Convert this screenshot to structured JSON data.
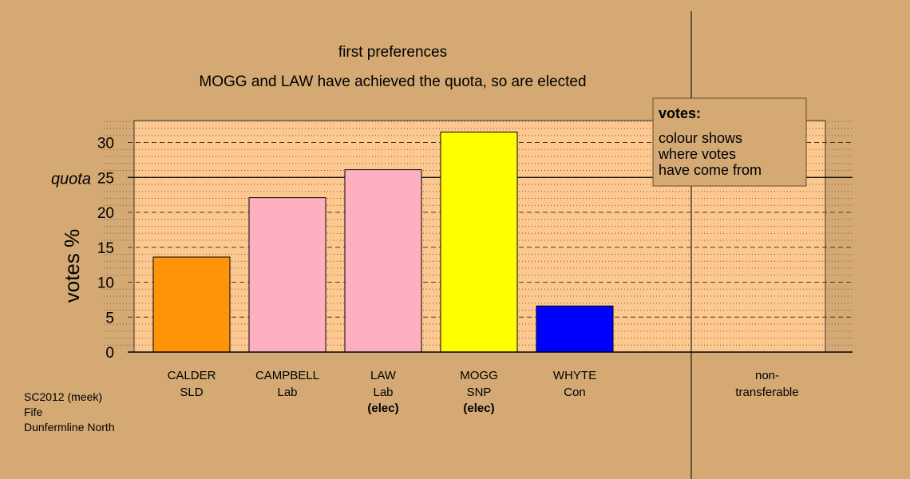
{
  "chart_data": {
    "type": "bar",
    "title": "first preferences",
    "subtitle": "MOGG and LAW have achieved the quota, so are elected",
    "ylabel": "votes %",
    "ylim": [
      0,
      33
    ],
    "yticks": [
      0,
      5,
      10,
      15,
      20,
      25,
      30
    ],
    "quota": {
      "label": "quota",
      "value": 25
    },
    "categories": [
      {
        "name": "CALDER",
        "party": "SLD",
        "note": "",
        "value": 13.6,
        "color": "#ff9408"
      },
      {
        "name": "CAMPBELL",
        "party": "Lab",
        "note": "",
        "value": 22.1,
        "color": "#ffb0c0"
      },
      {
        "name": "LAW",
        "party": "Lab",
        "note": "(elec)",
        "value": 26.1,
        "color": "#ffb0c0"
      },
      {
        "name": "MOGG",
        "party": "SNP",
        "note": "(elec)",
        "value": 31.5,
        "color": "#ffff00"
      },
      {
        "name": "WHYTE",
        "party": "Con",
        "note": "",
        "value": 6.6,
        "color": "#0000ff"
      }
    ],
    "nontransferable": {
      "line1": "non-",
      "line2": "transferable",
      "value": 0
    },
    "legend": {
      "title": "votes:",
      "lines": [
        "colour shows",
        "where votes",
        "have come from"
      ],
      "placement": "top-right"
    },
    "grid": true
  },
  "footnote": [
    "SC2012 (meek)",
    "Fife",
    "Dunfermline North"
  ],
  "colors": {
    "background": "#d4a974",
    "plot_background": "#fcc890",
    "legend_background": "#d4a974"
  }
}
